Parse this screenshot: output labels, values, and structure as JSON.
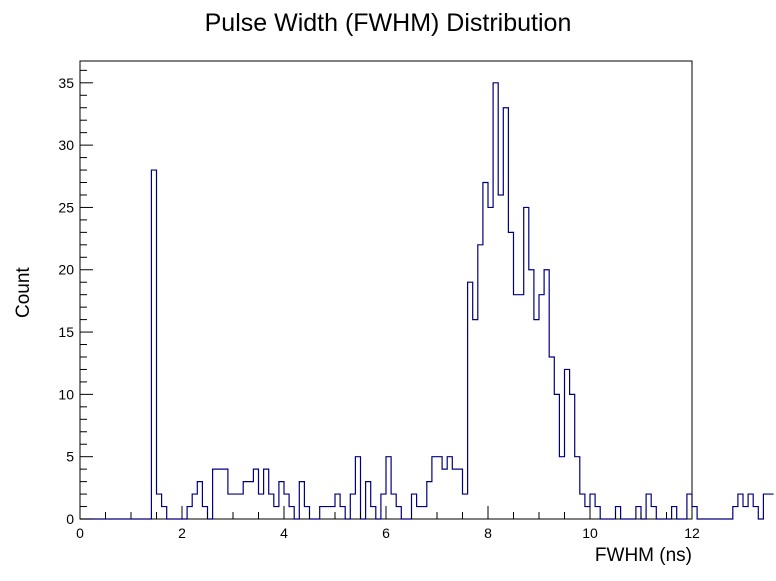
{
  "chart_data": {
    "type": "bar",
    "subtype": "step-histogram",
    "title": "Pulse Width (FWHM) Distribution",
    "xlabel": "FWHM (ns)",
    "ylabel": "Count",
    "xlim": [
      0,
      12
    ],
    "ylim": [
      0,
      36.75
    ],
    "x_ticks": [
      0,
      2,
      4,
      6,
      8,
      10,
      12
    ],
    "y_ticks": [
      0,
      5,
      10,
      15,
      20,
      25,
      30,
      35
    ],
    "x_tick_labels": [
      "0",
      "2",
      "4",
      "6",
      "8",
      "10",
      "12"
    ],
    "y_tick_labels": [
      "0",
      "5",
      "10",
      "15",
      "20",
      "25",
      "30",
      "35"
    ],
    "grid": false,
    "legend": "none",
    "line_color": "#00007f",
    "bin_width": 0.1,
    "bin_start": 0,
    "counts": [
      0,
      0,
      0,
      0,
      0,
      0,
      0,
      0,
      0,
      0,
      0,
      0,
      0,
      0,
      28,
      2,
      1,
      0,
      0,
      0,
      0,
      1,
      2,
      3,
      1,
      0,
      4,
      4,
      4,
      2,
      2,
      2,
      3,
      3,
      4,
      2,
      4,
      2,
      1,
      3,
      2,
      1,
      0,
      3,
      1,
      0,
      0,
      1,
      1,
      1,
      2,
      1,
      0,
      2,
      5,
      0,
      3,
      1,
      0,
      2,
      5,
      2,
      1,
      0,
      0,
      2,
      1,
      1,
      3,
      5,
      5,
      4,
      5,
      4,
      4,
      2,
      19,
      16,
      22,
      27,
      25,
      35,
      26,
      33,
      23,
      18,
      18,
      25,
      20,
      16,
      18,
      20,
      13,
      10,
      5,
      12,
      10,
      5,
      2,
      1,
      2,
      1,
      0,
      0,
      0,
      1,
      0,
      0,
      0,
      1,
      0,
      2,
      1,
      0,
      0,
      0,
      1,
      0,
      0,
      2,
      1,
      0,
      0,
      0,
      0,
      0,
      0,
      0,
      1,
      2,
      1,
      2,
      1,
      0,
      2,
      2
    ]
  }
}
